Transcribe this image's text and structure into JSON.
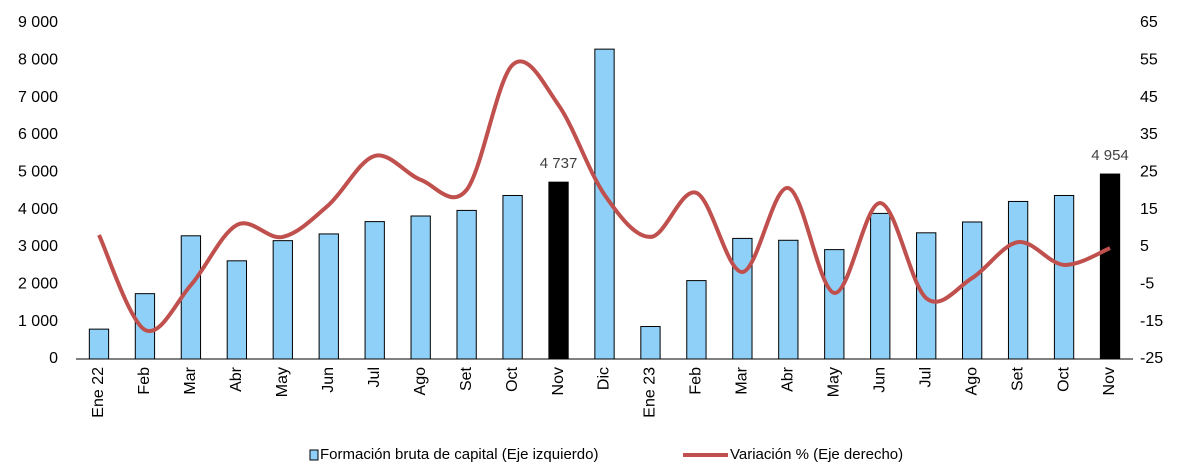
{
  "chart_data": {
    "type": "bar",
    "categories": [
      "Ene 22",
      "Feb",
      "Mar",
      "Abr",
      "May",
      "Jun",
      "Jul",
      "Ago",
      "Set",
      "Oct",
      "Nov",
      "Dic",
      "Ene 23",
      "Feb",
      "Mar",
      "Abr",
      "May",
      "Jun",
      "Jul",
      "Ago",
      "Set",
      "Oct",
      "Nov"
    ],
    "series": [
      {
        "name": "Formación bruta de capital (Eje izquierdo)",
        "type": "bar",
        "color": "#8fd0f8",
        "colors": [
          "#8fd0f8",
          "#8fd0f8",
          "#8fd0f8",
          "#8fd0f8",
          "#8fd0f8",
          "#8fd0f8",
          "#8fd0f8",
          "#8fd0f8",
          "#8fd0f8",
          "#8fd0f8",
          "#000000",
          "#8fd0f8",
          "#8fd0f8",
          "#8fd0f8",
          "#8fd0f8",
          "#8fd0f8",
          "#8fd0f8",
          "#8fd0f8",
          "#8fd0f8",
          "#8fd0f8",
          "#8fd0f8",
          "#8fd0f8",
          "#000000"
        ],
        "values": [
          800,
          1750,
          3300,
          2630,
          3170,
          3350,
          3680,
          3830,
          3980,
          4380,
          4737,
          8300,
          870,
          2100,
          3230,
          3180,
          2930,
          3900,
          3380,
          3670,
          4220,
          4380,
          4954
        ],
        "value_labels": [
          null,
          null,
          null,
          null,
          null,
          null,
          null,
          null,
          null,
          null,
          "4 737",
          null,
          null,
          null,
          null,
          null,
          null,
          null,
          null,
          null,
          null,
          null,
          "4 954"
        ]
      },
      {
        "name": "Variación % (Eje derecho)",
        "type": "line",
        "axis": "y2",
        "color": "#c0504d",
        "values": [
          8.2,
          -17.2,
          -5.2,
          10.9,
          7.7,
          16.3,
          29.4,
          23,
          20.3,
          53.8,
          43,
          19,
          7.7,
          19.5,
          -1.7,
          20.8,
          -7.3,
          16.8,
          -8.7,
          -3.3,
          6.3,
          0.2,
          4.7
        ]
      }
    ],
    "ylim": [
      0,
      9000
    ],
    "yticks": [
      0,
      {
        "value": 1000,
        "label": "1 000"
      },
      {
        "value": 2000,
        "label": "2 000"
      },
      {
        "value": 3000,
        "label": "3 000"
      },
      {
        "value": 4000,
        "label": "4 000"
      },
      {
        "value": 5000,
        "label": "5 000"
      },
      {
        "value": 6000,
        "label": "6 000"
      },
      {
        "value": 7000,
        "label": "7 000"
      },
      {
        "value": 8000,
        "label": "8 000"
      },
      {
        "value": 9000,
        "label": "9 000"
      }
    ],
    "y2lim": [
      -25,
      65
    ],
    "y2ticks": [
      -25,
      -15,
      -5,
      5,
      15,
      25,
      35,
      45,
      55,
      65
    ],
    "grid": false
  }
}
